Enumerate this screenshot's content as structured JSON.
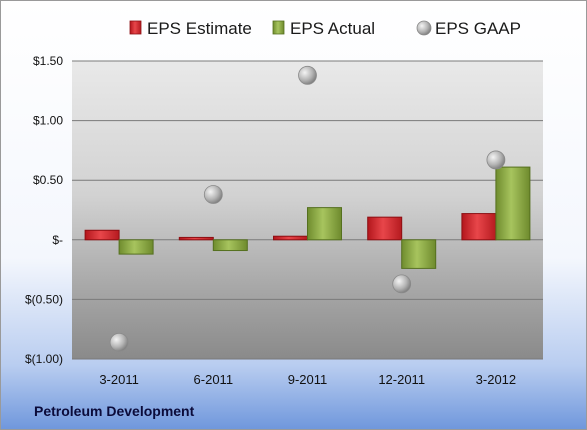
{
  "chart_data": {
    "type": "bar",
    "footer": "Petroleum Development",
    "categories": [
      "3-2011",
      "6-2011",
      "9-2011",
      "12-2011",
      "3-2012"
    ],
    "series": [
      {
        "name": "EPS Estimate",
        "kind": "bar",
        "color": "#d4262b",
        "values": [
          0.08,
          0.02,
          0.03,
          0.19,
          0.22
        ]
      },
      {
        "name": "EPS Actual",
        "kind": "bar",
        "color": "#8fae48",
        "values": [
          -0.12,
          -0.09,
          0.27,
          -0.24,
          0.61
        ]
      },
      {
        "name": "EPS GAAP",
        "kind": "marker",
        "color": "#a8a8a8",
        "values": [
          -0.86,
          0.38,
          1.38,
          -0.37,
          0.67
        ]
      }
    ],
    "y_ticks": [
      {
        "value": 1.5,
        "label": "$1.50"
      },
      {
        "value": 1.0,
        "label": "$1.00"
      },
      {
        "value": 0.5,
        "label": "$0.50"
      },
      {
        "value": 0,
        "label": "$-"
      },
      {
        "value": -0.5,
        "label": "$(0.50)"
      },
      {
        "value": -1.0,
        "label": "$(1.00)"
      }
    ],
    "ylim": [
      -1.0,
      1.5
    ],
    "grid": true,
    "legend_position": "top"
  }
}
